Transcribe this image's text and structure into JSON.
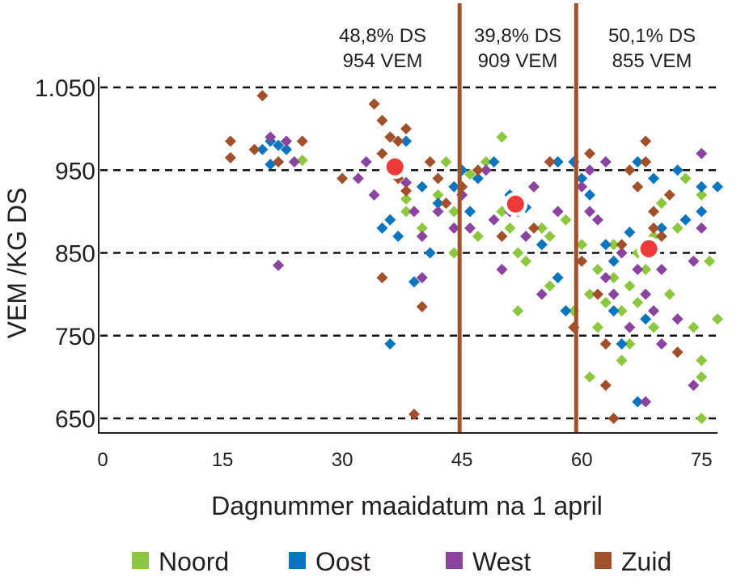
{
  "chart_data": {
    "type": "scatter",
    "title": "",
    "xlabel": "Dagnummer maaidatum na 1 april",
    "ylabel": "VEM /KG DS",
    "xlim": [
      0,
      77
    ],
    "ylim": [
      630,
      1065
    ],
    "x_ticks": [
      "0",
      "15",
      "30",
      "45",
      "60",
      "75"
    ],
    "x_tick_values": [
      0,
      15,
      30,
      45,
      60,
      75
    ],
    "y_ticks": [
      "1.050",
      "950",
      "850",
      "750",
      "650"
    ],
    "y_tick_values": [
      1050,
      950,
      850,
      750,
      650
    ],
    "grid": "horizontal dashed",
    "legend_position": "bottom",
    "period_dividers": [
      44.7,
      59.3
    ],
    "divider_color": "#a0522d",
    "annotations": [
      {
        "line1": "48,8% DS",
        "line2": "954 VEM",
        "x": 36.6,
        "y": 954
      },
      {
        "line1": "39,8% DS",
        "line2": "909 VEM",
        "x": 51.7,
        "y": 909
      },
      {
        "line1": "50,1% DS",
        "line2": "855 VEM",
        "x": 68.4,
        "y": 855
      }
    ],
    "series": [
      {
        "name": "Noord",
        "color": "#8dc63f",
        "points": [
          [
            25,
            962
          ],
          [
            36,
            990
          ],
          [
            38,
            915
          ],
          [
            38,
            900
          ],
          [
            40,
            880
          ],
          [
            42,
            920
          ],
          [
            43,
            960
          ],
          [
            44,
            900
          ],
          [
            45,
            930
          ],
          [
            46,
            945
          ],
          [
            47,
            870
          ],
          [
            48,
            960
          ],
          [
            50,
            990
          ],
          [
            50,
            900
          ],
          [
            51,
            880
          ],
          [
            52,
            850
          ],
          [
            53,
            840
          ],
          [
            54,
            930
          ],
          [
            55,
            880
          ],
          [
            56,
            870
          ],
          [
            57,
            820
          ],
          [
            57,
            960
          ],
          [
            58,
            890
          ],
          [
            59,
            780
          ],
          [
            60,
            860
          ],
          [
            61,
            800
          ],
          [
            62,
            760
          ],
          [
            62,
            830
          ],
          [
            63,
            790
          ],
          [
            63,
            740
          ],
          [
            64,
            820
          ],
          [
            64,
            860
          ],
          [
            65,
            780
          ],
          [
            65,
            720
          ],
          [
            66,
            810
          ],
          [
            67,
            790
          ],
          [
            67,
            850
          ],
          [
            68,
            830
          ],
          [
            69,
            870
          ],
          [
            70,
            910
          ],
          [
            71,
            800
          ],
          [
            72,
            880
          ],
          [
            73,
            940
          ],
          [
            74,
            760
          ],
          [
            75,
            720
          ],
          [
            75,
            700
          ],
          [
            75,
            650
          ],
          [
            75,
            920
          ],
          [
            77,
            770
          ],
          [
            76,
            840
          ],
          [
            61,
            700
          ],
          [
            66,
            740
          ],
          [
            69,
            760
          ],
          [
            52,
            780
          ],
          [
            56,
            810
          ],
          [
            44,
            850
          ]
        ]
      },
      {
        "name": "Oost",
        "color": "#0a75bf",
        "points": [
          [
            20,
            975
          ],
          [
            21,
            985
          ],
          [
            22,
            980
          ],
          [
            23,
            975
          ],
          [
            21,
            957
          ],
          [
            35,
            880
          ],
          [
            37,
            870
          ],
          [
            36,
            890
          ],
          [
            38,
            985
          ],
          [
            40,
            930
          ],
          [
            41,
            850
          ],
          [
            39,
            815
          ],
          [
            36,
            740
          ],
          [
            42,
            910
          ],
          [
            44,
            930
          ],
          [
            45,
            950
          ],
          [
            46,
            900
          ],
          [
            47,
            940
          ],
          [
            49,
            960
          ],
          [
            51,
            920
          ],
          [
            53,
            905
          ],
          [
            55,
            860
          ],
          [
            57,
            820
          ],
          [
            57,
            960
          ],
          [
            58,
            780
          ],
          [
            59,
            960
          ],
          [
            60,
            940
          ],
          [
            61,
            920
          ],
          [
            63,
            860
          ],
          [
            64,
            840
          ],
          [
            66,
            875
          ],
          [
            67,
            960
          ],
          [
            69,
            940
          ],
          [
            70,
            880
          ],
          [
            73,
            890
          ],
          [
            75,
            900
          ],
          [
            75,
            930
          ],
          [
            77,
            930
          ],
          [
            64,
            780
          ],
          [
            65,
            740
          ],
          [
            67,
            670
          ],
          [
            68,
            770
          ],
          [
            72,
            950
          ]
        ]
      },
      {
        "name": "West",
        "color": "#8a44a0",
        "points": [
          [
            21,
            990
          ],
          [
            23,
            985
          ],
          [
            24,
            960
          ],
          [
            22,
            835
          ],
          [
            33,
            960
          ],
          [
            32,
            940
          ],
          [
            34,
            920
          ],
          [
            36,
            960
          ],
          [
            38,
            935
          ],
          [
            39,
            900
          ],
          [
            40,
            870
          ],
          [
            40,
            820
          ],
          [
            42,
            900
          ],
          [
            44,
            880
          ],
          [
            45,
            920
          ],
          [
            46,
            880
          ],
          [
            48,
            950
          ],
          [
            49,
            890
          ],
          [
            50,
            830
          ],
          [
            51,
            900
          ],
          [
            53,
            870
          ],
          [
            54,
            930
          ],
          [
            55,
            800
          ],
          [
            57,
            900
          ],
          [
            60,
            930
          ],
          [
            61,
            950
          ],
          [
            62,
            890
          ],
          [
            63,
            820
          ],
          [
            64,
            800
          ],
          [
            65,
            850
          ],
          [
            66,
            760
          ],
          [
            67,
            830
          ],
          [
            68,
            800
          ],
          [
            69,
            780
          ],
          [
            70,
            830
          ],
          [
            70,
            740
          ],
          [
            72,
            770
          ],
          [
            74,
            840
          ],
          [
            75,
            970
          ],
          [
            75,
            880
          ],
          [
            74,
            690
          ],
          [
            68,
            670
          ],
          [
            61,
            900
          ],
          [
            63,
            960
          ]
        ]
      },
      {
        "name": "Zuid",
        "color": "#a0502a",
        "points": [
          [
            16,
            985
          ],
          [
            16,
            965
          ],
          [
            19,
            975
          ],
          [
            20,
            1040
          ],
          [
            22,
            960
          ],
          [
            25,
            985
          ],
          [
            30,
            940
          ],
          [
            34,
            1030
          ],
          [
            35,
            1010
          ],
          [
            36,
            990
          ],
          [
            35,
            970
          ],
          [
            37,
            985
          ],
          [
            38,
            1000
          ],
          [
            36,
            960
          ],
          [
            37,
            940
          ],
          [
            38,
            925
          ],
          [
            35,
            820
          ],
          [
            40,
            785
          ],
          [
            39,
            655
          ],
          [
            41,
            960
          ],
          [
            42,
            940
          ],
          [
            43,
            910
          ],
          [
            45,
            930
          ],
          [
            47,
            950
          ],
          [
            50,
            870
          ],
          [
            52,
            900
          ],
          [
            54,
            880
          ],
          [
            56,
            960
          ],
          [
            60,
            840
          ],
          [
            62,
            800
          ],
          [
            63,
            690
          ],
          [
            64,
            650
          ],
          [
            65,
            860
          ],
          [
            66,
            950
          ],
          [
            67,
            930
          ],
          [
            68,
            960
          ],
          [
            68,
            985
          ],
          [
            69,
            900
          ],
          [
            69,
            880
          ],
          [
            70,
            870
          ],
          [
            71,
            920
          ],
          [
            72,
            730
          ],
          [
            63,
            740
          ],
          [
            59,
            760
          ],
          [
            61,
            970
          ]
        ]
      }
    ],
    "mean_marker_color": "#ee3a3a"
  }
}
